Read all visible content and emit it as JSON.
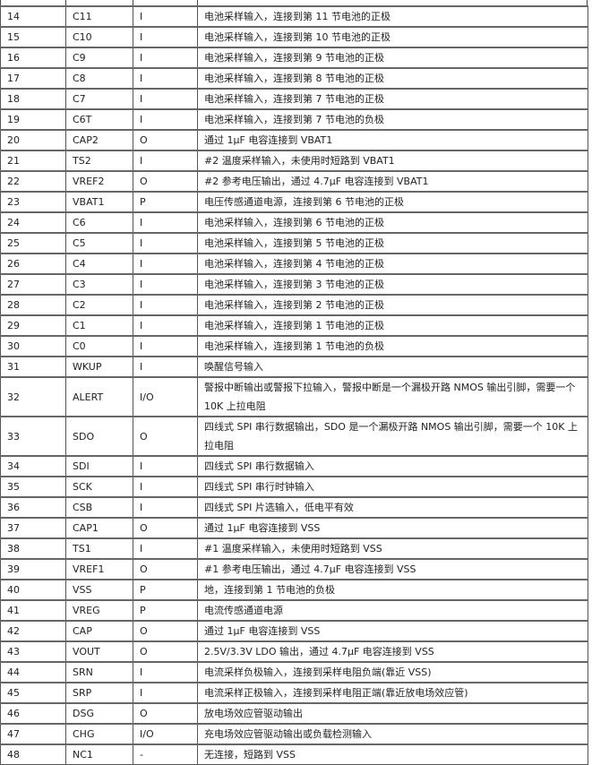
{
  "rows": [
    {
      "pin": "14",
      "name": "C11",
      "type": "I",
      "desc": "电池采样输入，连接到第 11 节电池的正极"
    },
    {
      "pin": "15",
      "name": "C10",
      "type": "I",
      "desc": "电池采样输入，连接到第 10 节电池的正极"
    },
    {
      "pin": "16",
      "name": "C9",
      "type": "I",
      "desc": "电池采样输入，连接到第 9 节电池的正极"
    },
    {
      "pin": "17",
      "name": "C8",
      "type": "I",
      "desc": "电池采样输入，连接到第 8 节电池的正极"
    },
    {
      "pin": "18",
      "name": "C7",
      "type": "I",
      "desc": "电池采样输入，连接到第 7 节电池的正极"
    },
    {
      "pin": "19",
      "name": "C6T",
      "type": "I",
      "desc": "电池采样输入，连接到第 7 节电池的负极"
    },
    {
      "pin": "20",
      "name": "CAP2",
      "type": "O",
      "desc": "通过 1μF 电容连接到 VBAT1"
    },
    {
      "pin": "21",
      "name": "TS2",
      "type": "I",
      "desc": "#2 温度采样输入，未使用时短路到 VBAT1"
    },
    {
      "pin": "22",
      "name": "VREF2",
      "type": "O",
      "desc": "#2 参考电压输出，通过 4.7μF 电容连接到 VBAT1"
    },
    {
      "pin": "23",
      "name": "VBAT1",
      "type": "P",
      "desc": "电压传感通道电源，连接到第 6 节电池的正极"
    },
    {
      "pin": "24",
      "name": "C6",
      "type": "I",
      "desc": "电池采样输入，连接到第 6 节电池的正极"
    },
    {
      "pin": "25",
      "name": "C5",
      "type": "I",
      "desc": "电池采样输入，连接到第 5 节电池的正极"
    },
    {
      "pin": "26",
      "name": "C4",
      "type": "I",
      "desc": "电池采样输入，连接到第 4 节电池的正极"
    },
    {
      "pin": "27",
      "name": "C3",
      "type": "I",
      "desc": "电池采样输入，连接到第 3 节电池的正极"
    },
    {
      "pin": "28",
      "name": "C2",
      "type": "I",
      "desc": "电池采样输入，连接到第 2 节电池的正极"
    },
    {
      "pin": "29",
      "name": "C1",
      "type": "I",
      "desc": "电池采样输入，连接到第 1 节电池的正极"
    },
    {
      "pin": "30",
      "name": "C0",
      "type": "I",
      "desc": "电池采样输入，连接到第 1 节电池的负极"
    },
    {
      "pin": "31",
      "name": "WKUP",
      "type": "I",
      "desc": "唤醒信号输入"
    },
    {
      "pin": "32",
      "name": "ALERT",
      "type": "I/O",
      "desc": "警报中断输出或警报下拉输入，警报中断是一个漏极开路 NMOS 输出引脚，需要一个 10K 上拉电阻"
    },
    {
      "pin": "33",
      "name": "SDO",
      "type": "O",
      "desc": "四线式 SPI 串行数据输出，SDO 是一个漏极开路 NMOS 输出引脚，需要一个 10K 上拉电阻"
    },
    {
      "pin": "34",
      "name": "SDI",
      "type": "I",
      "desc": "四线式 SPI 串行数据输入"
    },
    {
      "pin": "35",
      "name": "SCK",
      "type": "I",
      "desc": "四线式 SPI 串行时钟输入"
    },
    {
      "pin": "36",
      "name": "CSB",
      "type": "I",
      "desc": "四线式 SPI 片选输入，低电平有效"
    },
    {
      "pin": "37",
      "name": "CAP1",
      "type": "O",
      "desc": "通过 1μF 电容连接到 VSS"
    },
    {
      "pin": "38",
      "name": "TS1",
      "type": "I",
      "desc": "#1 温度采样输入，未使用时短路到 VSS"
    },
    {
      "pin": "39",
      "name": "VREF1",
      "type": "O",
      "desc": "#1 参考电压输出，通过 4.7μF 电容连接到 VSS"
    },
    {
      "pin": "40",
      "name": "VSS",
      "type": "P",
      "desc": "地，连接到第 1 节电池的负极"
    },
    {
      "pin": "41",
      "name": "VREG",
      "type": "P",
      "desc": "电流传感通道电源"
    },
    {
      "pin": "42",
      "name": "CAP",
      "type": "O",
      "desc": "通过 1μF 电容连接到 VSS"
    },
    {
      "pin": "43",
      "name": "VOUT",
      "type": "O",
      "desc": "2.5V/3.3V LDO 输出，通过 4.7μF 电容连接到 VSS"
    },
    {
      "pin": "44",
      "name": "SRN",
      "type": "I",
      "desc": "电流采样负极输入，连接到采样电阻负端(靠近 VSS)"
    },
    {
      "pin": "45",
      "name": "SRP",
      "type": "I",
      "desc": "电流采样正极输入，连接到采样电阻正端(靠近放电场效应管)"
    },
    {
      "pin": "46",
      "name": "DSG",
      "type": "O",
      "desc": "放电场效应管驱动输出"
    },
    {
      "pin": "47",
      "name": "CHG",
      "type": "I/O",
      "desc": "充电场效应管驱动输出或负载检测输入"
    },
    {
      "pin": "48",
      "name": "NC1",
      "type": "-",
      "desc": "无连接，短路到 VSS"
    }
  ]
}
